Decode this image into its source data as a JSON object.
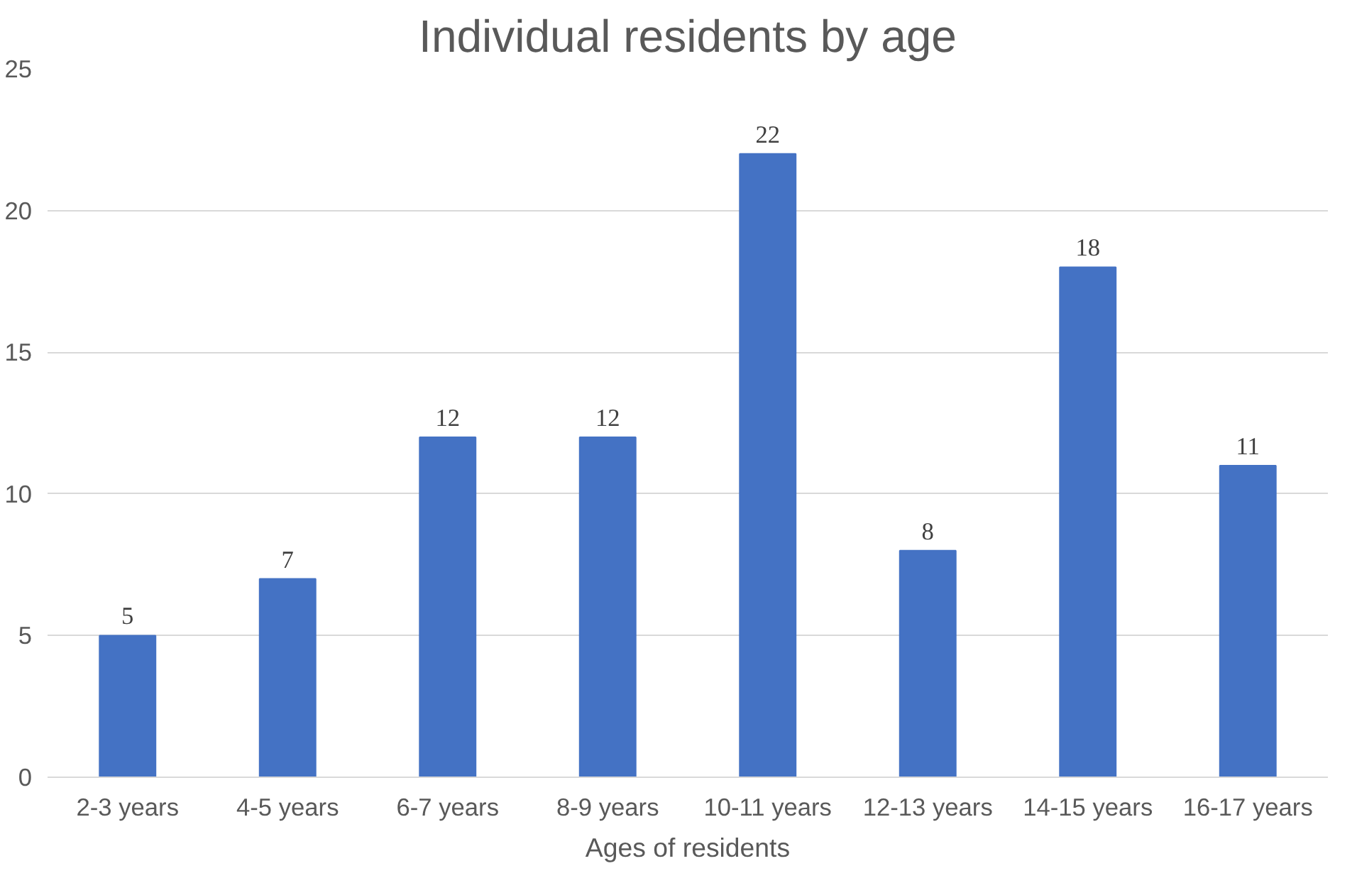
{
  "chart_data": {
    "type": "bar",
    "title": "Individual residents by age",
    "xlabel": "Ages of residents",
    "categories": [
      "2-3 years",
      "4-5 years",
      "6-7 years",
      "8-9 years",
      "10-11 years",
      "12-13 years",
      "14-15 years",
      "16-17 years"
    ],
    "values": [
      5,
      7,
      12,
      12,
      22,
      8,
      18,
      11
    ],
    "color": "#4472c4",
    "ylim": [
      0,
      25
    ],
    "yticks": [
      0,
      5,
      10,
      15,
      20,
      25
    ],
    "grid": "y",
    "data_labels": true
  }
}
